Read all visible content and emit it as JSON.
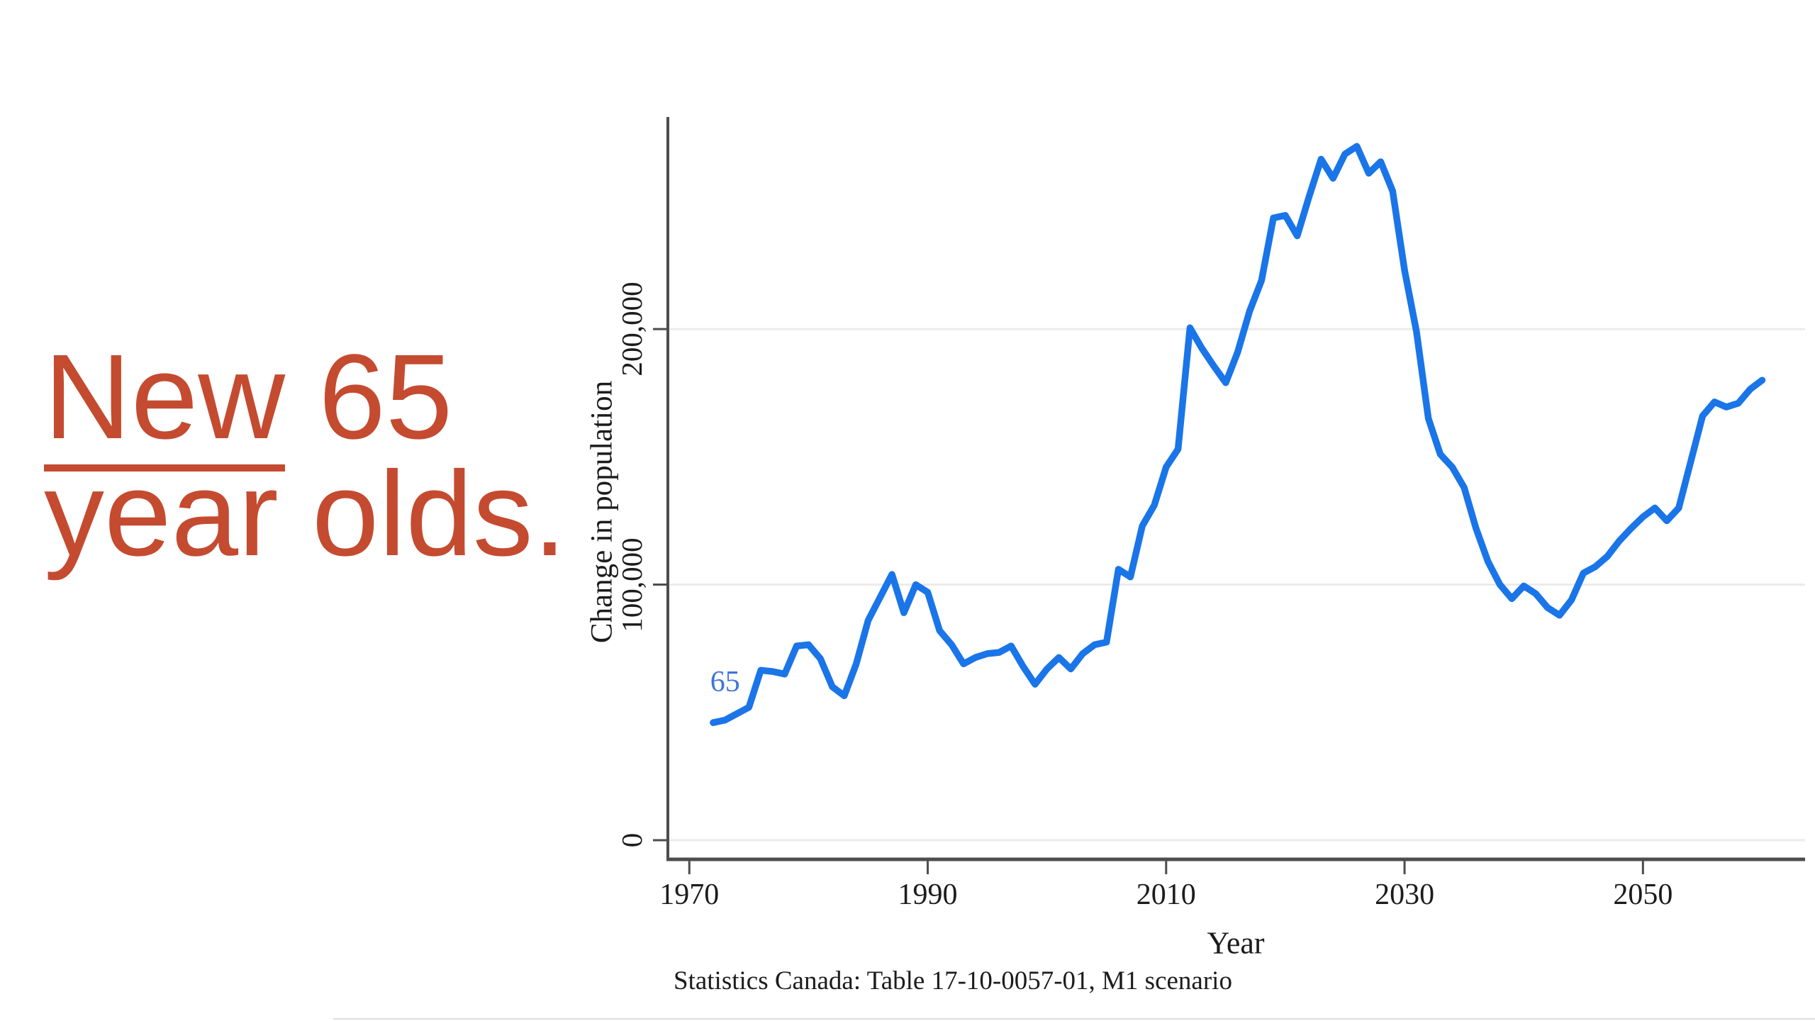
{
  "headline": {
    "underlined_word": "New",
    "rest_line1": " 65",
    "line2": "year olds.",
    "color": "#c44b30"
  },
  "caption": {
    "text": "Statistics Canada: Table 17-10-0057-01, M1 scenario"
  },
  "chart_data": {
    "type": "line",
    "title": "",
    "xlabel": "Year",
    "ylabel": "Change in population",
    "legend": "none",
    "grid": "horizontal",
    "series_label": "65",
    "series_label_at": {
      "year": 1973.0,
      "value": 62000
    },
    "line_color": "#1a75e8",
    "series_label_color": "#3f75d9",
    "axis_color": "#4d4d4d",
    "grid_color": "#ebebeb",
    "text_color": "#1c1c1c",
    "xlim": [
      1968.2,
      2063.6
    ],
    "ylim": [
      -7500,
      283000
    ],
    "x_ticks": [
      1970,
      1990,
      2010,
      2030,
      2050
    ],
    "y_ticks": [
      {
        "value": 0,
        "label": "0"
      },
      {
        "value": 100000,
        "label": "100,000"
      },
      {
        "value": 200000,
        "label": "200,000"
      }
    ],
    "x": [
      1972,
      1973,
      1974,
      1975,
      1976,
      1977,
      1978,
      1979,
      1980,
      1981,
      1982,
      1983,
      1984,
      1985,
      1986,
      1987,
      1988,
      1989,
      1990,
      1991,
      1992,
      1993,
      1994,
      1995,
      1996,
      1997,
      1998,
      1999,
      2000,
      2001,
      2002,
      2003,
      2004,
      2005,
      2006,
      2007,
      2008,
      2009,
      2010,
      2011,
      2012,
      2013,
      2014,
      2015,
      2016,
      2017,
      2018,
      2019,
      2020,
      2021,
      2022,
      2023,
      2024,
      2025,
      2026,
      2027,
      2028,
      2029,
      2030,
      2031,
      2032,
      2033,
      2034,
      2035,
      2036,
      2037,
      2038,
      2039,
      2040,
      2041,
      2042,
      2043,
      2044,
      2045,
      2046,
      2047,
      2048,
      2049,
      2050,
      2051,
      2052,
      2053,
      2054,
      2055,
      2056,
      2057,
      2058,
      2059,
      2060
    ],
    "values": [
      46000,
      47000,
      49500,
      52000,
      66500,
      66000,
      65000,
      76000,
      76500,
      71000,
      60000,
      56500,
      69000,
      86000,
      95000,
      104000,
      89000,
      100000,
      97000,
      82000,
      76500,
      69000,
      71500,
      73000,
      73500,
      76000,
      68000,
      61000,
      67000,
      71500,
      67000,
      73000,
      76500,
      77500,
      106000,
      103000,
      123000,
      131000,
      146000,
      153000,
      200500,
      192500,
      185500,
      179000,
      191000,
      207000,
      219000,
      243500,
      244500,
      236500,
      252000,
      266500,
      259000,
      268500,
      271500,
      261000,
      265500,
      254000,
      223000,
      199000,
      165000,
      151000,
      146000,
      138000,
      122000,
      109000,
      100000,
      94500,
      99500,
      96500,
      91000,
      88000,
      94000,
      104500,
      107000,
      111000,
      117000,
      122000,
      126500,
      130000,
      125000,
      130000,
      148000,
      166000,
      171500,
      169500,
      171000,
      176500,
      180000
    ]
  }
}
